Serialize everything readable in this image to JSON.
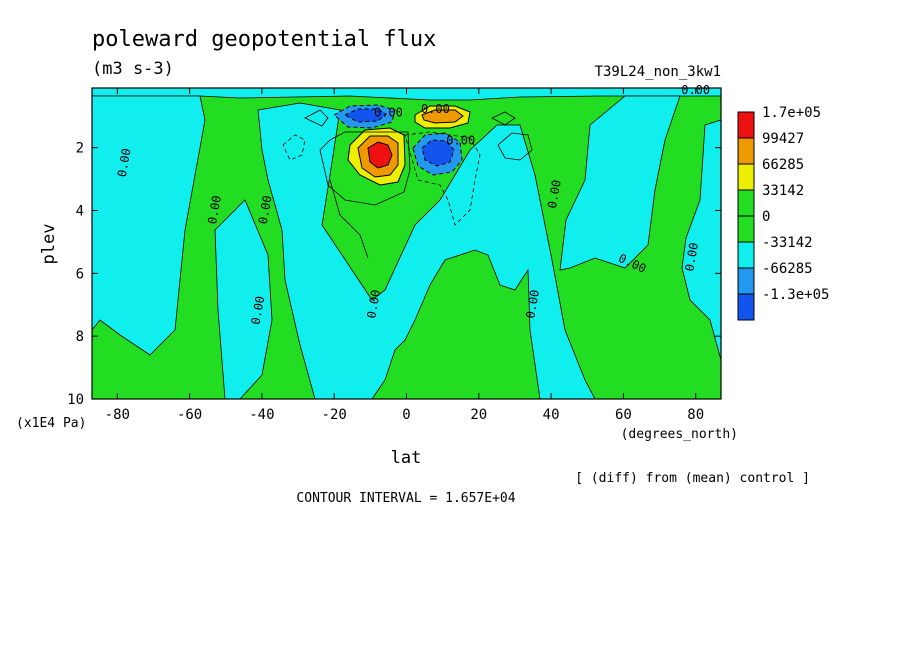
{
  "chart_data": {
    "type": "heatmap",
    "title": "poleward geopotential flux",
    "units": "(m3 s-3)",
    "run_label": "T39L24_non_3kw1",
    "xlabel": "lat",
    "x_units": "(degrees_north)",
    "ylabel": "plev",
    "y_units": "(x1E4 Pa)",
    "xlim": [
      -87,
      87
    ],
    "ylim": [
      10,
      0.1
    ],
    "x_ticks": [
      -80,
      -60,
      -40,
      -20,
      0,
      20,
      40,
      60,
      80
    ],
    "x_tick_labels": [
      "-80",
      "-60",
      "-40",
      "-20",
      "0",
      "20",
      "40",
      "60",
      "80"
    ],
    "y_ticks": [
      2,
      4,
      6,
      8,
      10
    ],
    "y_tick_labels": [
      "2",
      "4",
      "6",
      "8",
      "10"
    ],
    "y_axis_inverted": true,
    "legend": {
      "placement": "right",
      "levels": [
        "1.7e+05",
        "99427",
        "66285",
        "33142",
        "0",
        "-33142",
        "-66285",
        "-1.3e+05"
      ],
      "colors": [
        "#ee1111",
        "#ee9900",
        "#eeee00",
        "#22dd22",
        "#22dd22",
        "#11eeee",
        "#2299ee",
        "#1155ee"
      ]
    },
    "zero_contour_labels": [
      {
        "text": "0.00",
        "lat": 80,
        "plev": 0.1
      },
      {
        "text": "0.00",
        "lat": -77,
        "plev": 2.5
      },
      {
        "text": "0.00",
        "lat": -52,
        "plev": 4.0
      },
      {
        "text": "0.00",
        "lat": -38,
        "plev": 4.0
      },
      {
        "text": "0.00",
        "lat": -40,
        "plev": 7.2
      },
      {
        "text": "0.00",
        "lat": -8,
        "plev": 7.0
      },
      {
        "text": "0.00",
        "lat": 36,
        "plev": 7.0
      },
      {
        "text": "0.00",
        "lat": 42,
        "plev": 3.5
      },
      {
        "text": "0.00",
        "lat": 62,
        "plev": 5.8
      },
      {
        "text": "0.00",
        "lat": 80,
        "plev": 5.5
      },
      {
        "text": "0.00",
        "lat": 15,
        "plev": 1.9
      },
      {
        "text": "0.00",
        "lat": -5,
        "plev": 1.0
      },
      {
        "text": "0.00",
        "lat": 8,
        "plev": 0.9
      }
    ],
    "features": [
      {
        "kind": "maximum",
        "lat": -9,
        "plev": 2.2,
        "value": 170000
      },
      {
        "kind": "maximum",
        "lat": 12,
        "plev": 0.9,
        "value": 90000
      },
      {
        "kind": "minimum",
        "lat": 8,
        "plev": 2.2,
        "value": -110000
      },
      {
        "kind": "minimum",
        "lat": -8,
        "plev": 0.9,
        "value": -80000
      }
    ],
    "contour_interval_text": "CONTOUR INTERVAL = 1.657E+04",
    "comparison_note": "[ (diff) from (mean) control ]"
  }
}
